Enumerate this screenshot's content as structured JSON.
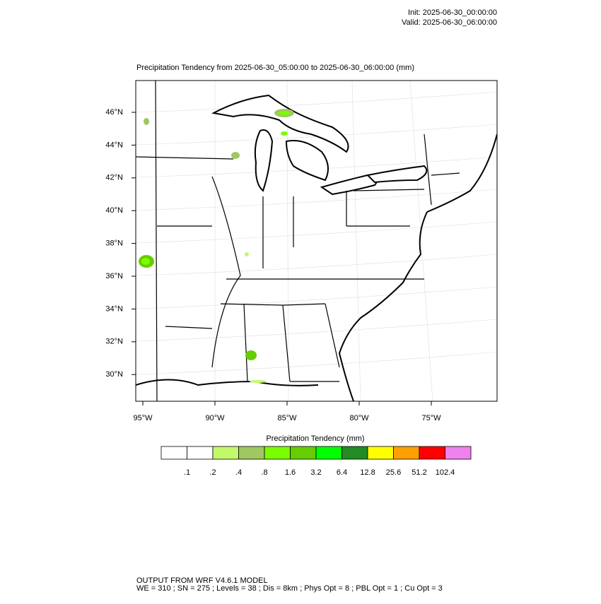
{
  "header": {
    "init": "Init: 2025-06-30_00:00:00",
    "valid": "Valid: 2025-06-30_06:00:00"
  },
  "map": {
    "title": "Precipitation Tendency from 2025-06-30_05:00:00 to 2025-06-30_06:00:00   (mm)",
    "lat_labels": [
      "46°N",
      "44°N",
      "42°N",
      "40°N",
      "38°N",
      "36°N",
      "34°N",
      "32°N",
      "30°N"
    ],
    "lon_labels": [
      "95°W",
      "90°W",
      "85°W",
      "80°W",
      "75°W"
    ]
  },
  "colorbar": {
    "title": "Precipitation Tendency  (mm)",
    "labels": [
      ".1",
      ".2",
      ".4",
      ".8",
      "1.6",
      "3.2",
      "6.4",
      "12.8",
      "25.6",
      "51.2",
      "102.4"
    ],
    "colors": [
      "#ffffff",
      "#ffffff",
      "#c4f86c",
      "#a0c862",
      "#7cfc00",
      "#66cd00",
      "#00ff00",
      "#228b22",
      "#ffff00",
      "#ff9f00",
      "#ff0000",
      "#ee82ee"
    ]
  },
  "footer": {
    "line1": "OUTPUT FROM WRF V4.6.1 MODEL",
    "line2": "WE = 310 ; SN = 275 ; Levels = 38 ; Dis = 8km ; Phys Opt = 8 ; PBL Opt = 1 ; Cu Opt = 3"
  }
}
